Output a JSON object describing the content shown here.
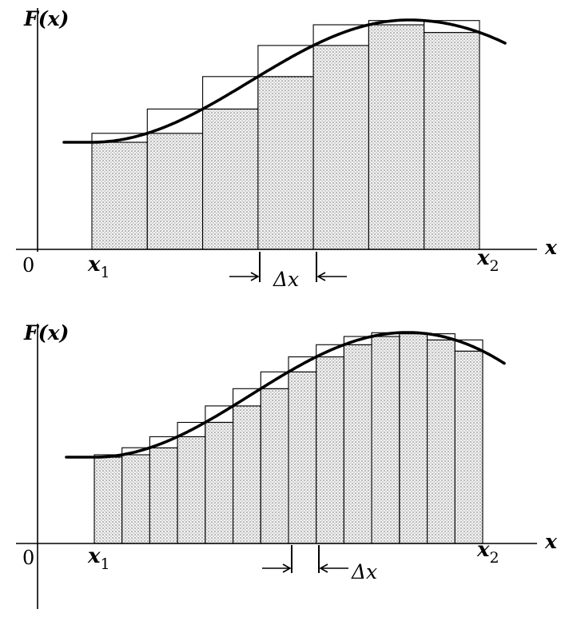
{
  "chart_data": [
    {
      "type": "bar",
      "panel": "top",
      "function_label": "F(x)",
      "x_axis_label": "x",
      "origin_label": "0",
      "start_label": "x",
      "start_subscript": "1",
      "end_label": "x",
      "end_subscript": "2",
      "interval_label": "Δx",
      "rectangle_count": 7,
      "highlighted_interval": 3
    },
    {
      "type": "bar",
      "panel": "bottom",
      "function_label": "F(x)",
      "x_axis_label": "x",
      "origin_label": "0",
      "start_label": "x",
      "start_subscript": "1",
      "end_label": "x",
      "end_subscript": "2",
      "interval_label": "Δx",
      "rectangle_count": 14,
      "highlighted_interval": 7
    }
  ],
  "colors": {
    "ink": "#000000",
    "paper": "#ffffff",
    "shade": "#9a9a9a"
  }
}
